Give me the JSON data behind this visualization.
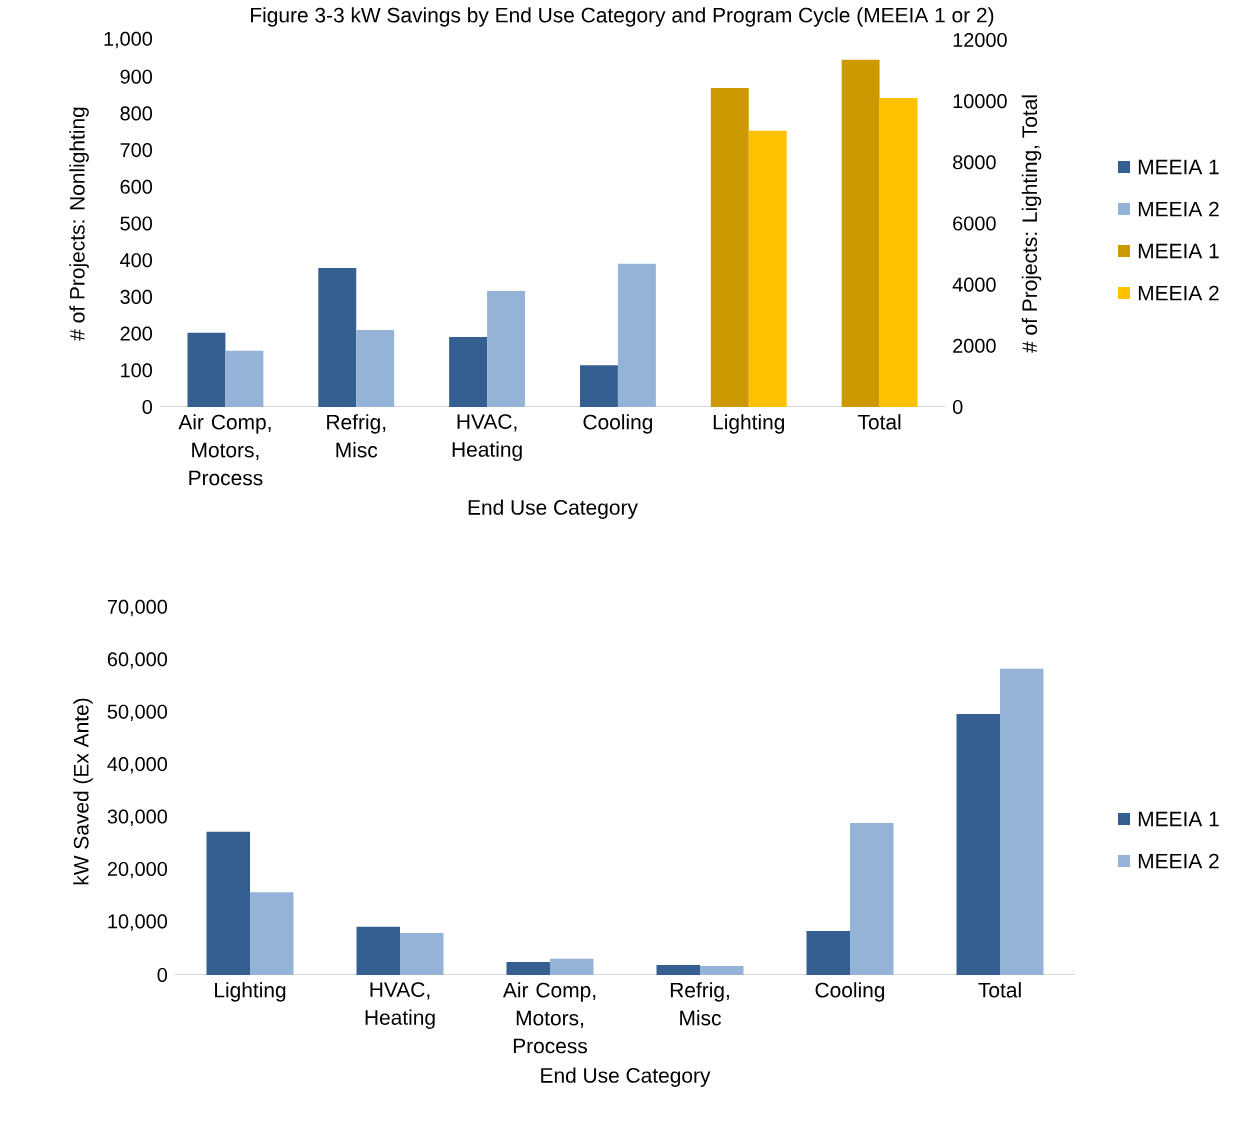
{
  "chart_data": [
    {
      "type": "bar",
      "title": "Figure 3-3 kW Savings by End Use Category and Program Cycle (MEEIA 1 or 2)",
      "xlabel": "End Use Category",
      "ylabel": "# of Projects: Nonlighting",
      "y2label": "# of Projects: Lighting, Total",
      "categories": [
        "Air Comp, Motors, Process",
        "Refrig, Misc",
        "HVAC, Heating",
        "Cooling",
        "Lighting",
        "Total"
      ],
      "series": [
        {
          "name": "MEEIA 1",
          "color": "#355f91",
          "values": [
            202,
            379,
            191,
            114,
            null,
            null
          ]
        },
        {
          "name": "MEEIA 2",
          "color": "#95b3d7",
          "values": [
            153,
            210,
            316,
            390,
            null,
            null
          ]
        },
        {
          "name": "MEEIA 1",
          "color": "#cc9900",
          "axis": "y2",
          "values": [
            null,
            null,
            null,
            null,
            10430,
            11350
          ]
        },
        {
          "name": "MEEIA 2",
          "color": "#ffc000",
          "axis": "y2",
          "values": [
            null,
            null,
            null,
            null,
            9030,
            10100
          ]
        }
      ],
      "ylim": [
        0,
        1000
      ],
      "yticks": [
        0,
        100,
        200,
        300,
        400,
        500,
        600,
        700,
        800,
        900,
        {
          "value": 1000,
          "label": "1,000"
        }
      ],
      "y2lim": [
        0,
        12000
      ],
      "y2ticks": [
        0,
        2000,
        4000,
        6000,
        8000,
        10000,
        12000
      ],
      "legend": "right"
    },
    {
      "type": "bar",
      "xlabel": "End Use Category",
      "ylabel": "kW Saved (Ex Ante)",
      "categories": [
        "Lighting",
        "HVAC, Heating",
        "Air Comp, Motors, Process",
        "Refrig, Misc",
        "Cooling",
        "Total"
      ],
      "series": [
        {
          "name": "MEEIA 1",
          "color": "#355f91",
          "values": [
            27300,
            9200,
            2500,
            1900,
            8400,
            49800
          ]
        },
        {
          "name": "MEEIA 2",
          "color": "#95b3d7",
          "values": [
            15800,
            8000,
            3100,
            1700,
            29000,
            58400
          ]
        }
      ],
      "ylim": [
        0,
        70000
      ],
      "yticks": [
        0,
        {
          "value": 10000,
          "label": "10,000"
        },
        {
          "value": 20000,
          "label": "20,000"
        },
        {
          "value": 30000,
          "label": "30,000"
        },
        {
          "value": 40000,
          "label": "40,000"
        },
        {
          "value": 50000,
          "label": "50,000"
        },
        {
          "value": 60000,
          "label": "60,000"
        },
        {
          "value": 70000,
          "label": "70,000"
        }
      ],
      "legend": "right"
    }
  ]
}
